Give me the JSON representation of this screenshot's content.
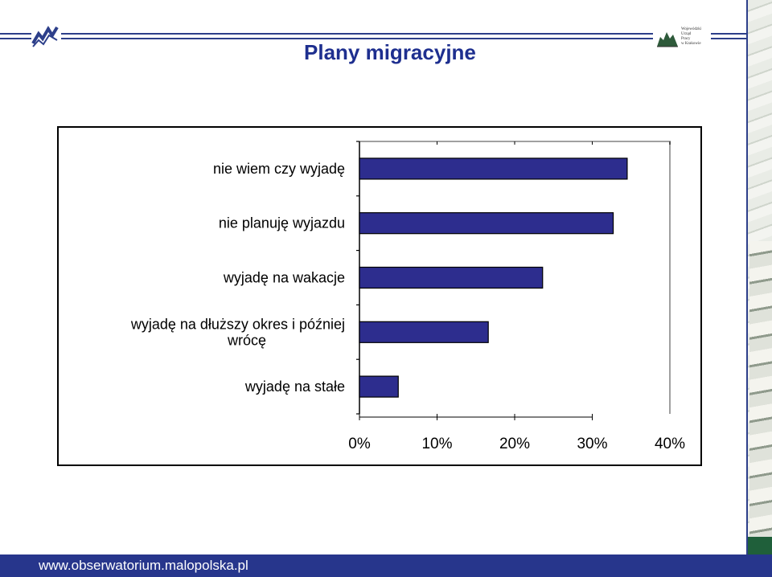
{
  "header": {
    "title": "Plany migracyjne",
    "logo_right_text": "Wojewódzki\nUrząd\nPracy\nw Krakowie"
  },
  "footer": {
    "url": "www.obserwatorium.malopolska.pl"
  },
  "colors": {
    "bar_fill": "#2d2d8e",
    "title": "#1e2f8f",
    "footer_bg": "#27368c",
    "frame_lines": "#2d3f8a"
  },
  "chart_data": {
    "type": "bar",
    "orientation": "horizontal",
    "categories": [
      [
        "nie wiem czy wyjadę"
      ],
      [
        "nie planuję wyjazdu"
      ],
      [
        "wyjadę na wakacje"
      ],
      [
        "wyjadę na dłuższy okres i później",
        "wrócę"
      ],
      [
        "wyjadę na stałe"
      ]
    ],
    "values": [
      34.5,
      32.7,
      23.6,
      16.6,
      5.0
    ],
    "xlim": [
      0,
      40
    ],
    "xticks": [
      0,
      10,
      20,
      30,
      40
    ],
    "xtick_labels": [
      "0%",
      "10%",
      "20%",
      "30%",
      "40%"
    ],
    "title": "",
    "xlabel": "",
    "ylabel": "",
    "grid": false,
    "legend": "none"
  }
}
